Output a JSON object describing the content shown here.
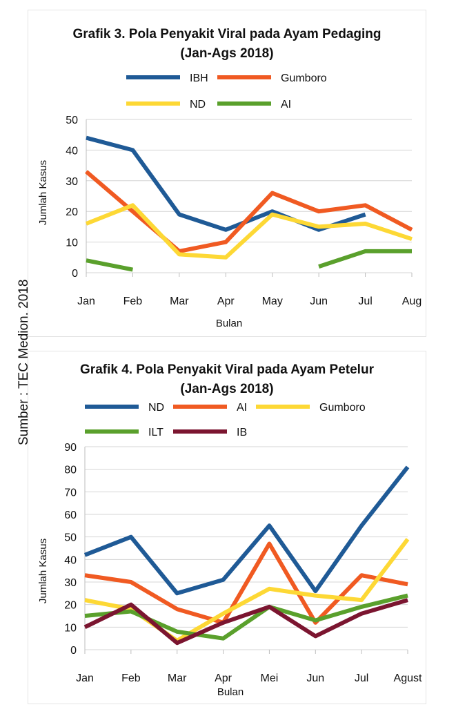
{
  "source_note": "Sumber : TEC Medion, 2018",
  "chart_data": [
    {
      "type": "line",
      "title_line1": "Grafik 3. Pola Penyakit Viral pada Ayam Pedaging",
      "title_line2": "(Jan-Ags 2018)",
      "xlabel": "Bulan",
      "ylabel": "Jumlah Kasus",
      "ylim": [
        0,
        50
      ],
      "yticks": [
        0,
        10,
        20,
        30,
        40,
        50
      ],
      "grid": true,
      "legend_position": "top",
      "categories": [
        "Jan",
        "Feb",
        "Mar",
        "Apr",
        "May",
        "Jun",
        "Jul",
        "Aug"
      ],
      "series": [
        {
          "name": "IBH",
          "color": "#1f5a96",
          "values": [
            44,
            40,
            19,
            14,
            20,
            14,
            19,
            null
          ]
        },
        {
          "name": "Gumboro",
          "color": "#f05a22",
          "values": [
            33,
            20,
            7,
            10,
            26,
            20,
            22,
            14
          ]
        },
        {
          "name": "ND",
          "color": "#fdd835",
          "values": [
            16,
            22,
            6,
            5,
            19,
            15,
            16,
            11
          ]
        },
        {
          "name": "AI",
          "color": "#5aa02c",
          "values": [
            4,
            1,
            null,
            null,
            null,
            2,
            7,
            7
          ]
        }
      ]
    },
    {
      "type": "line",
      "title_line1": "Grafik 4. Pola Penyakit Viral pada Ayam Petelur",
      "title_line2": "(Jan-Ags 2018)",
      "xlabel": "Bulan",
      "ylabel": "Jumlah Kasus",
      "ylim": [
        0,
        90
      ],
      "yticks": [
        0,
        10,
        20,
        30,
        40,
        50,
        60,
        70,
        80,
        90
      ],
      "grid": true,
      "legend_position": "top",
      "categories": [
        "Jan",
        "Feb",
        "Mar",
        "Apr",
        "Mei",
        "Jun",
        "Jul",
        "Agust"
      ],
      "series": [
        {
          "name": "ND",
          "color": "#1f5a96",
          "values": [
            42,
            50,
            25,
            31,
            55,
            26,
            55,
            81
          ]
        },
        {
          "name": "AI",
          "color": "#f05a22",
          "values": [
            33,
            30,
            18,
            12,
            47,
            12,
            33,
            29
          ]
        },
        {
          "name": "Gumboro",
          "color": "#fdd835",
          "values": [
            22,
            18,
            4,
            16,
            27,
            24,
            22,
            49
          ]
        },
        {
          "name": "ILT",
          "color": "#5aa02c",
          "values": [
            15,
            17,
            8,
            5,
            19,
            13,
            19,
            24
          ]
        },
        {
          "name": "IB",
          "color": "#7b1530",
          "values": [
            10,
            20,
            3,
            12,
            19,
            6,
            16,
            22
          ]
        }
      ]
    }
  ]
}
